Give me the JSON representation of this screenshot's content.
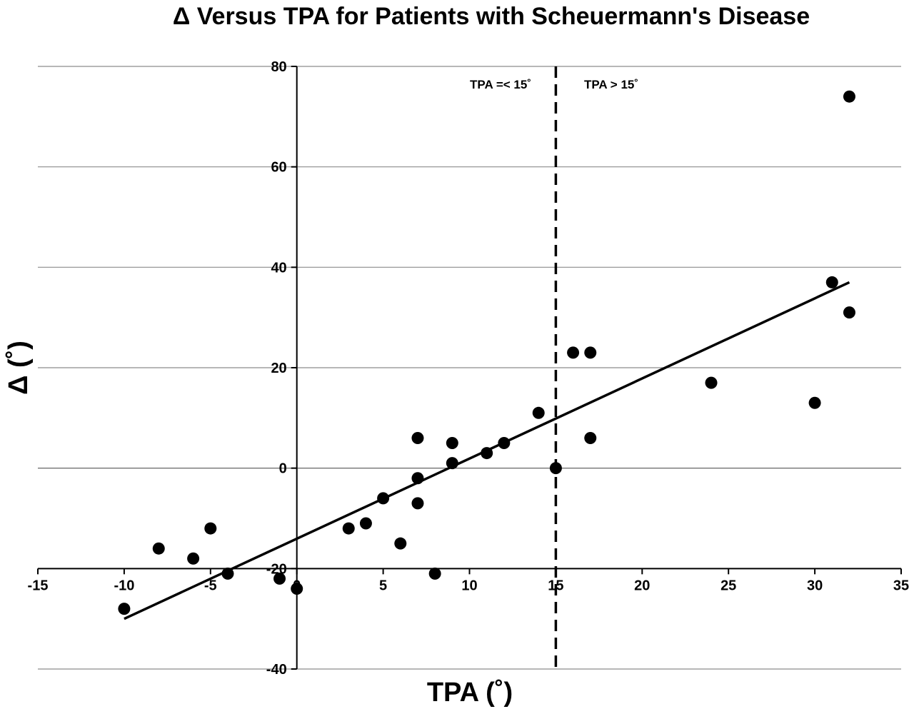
{
  "chart_data": {
    "type": "scatter",
    "title": "Δ Versus TPA for Patients with Scheuermann's Disease",
    "xlabel": "TPA (˚)",
    "ylabel": "Δ (˚)",
    "xlim": [
      -15,
      35
    ],
    "ylim": [
      -40,
      80
    ],
    "x_ticks": [
      -15,
      -10,
      -5,
      0,
      5,
      10,
      15,
      20,
      25,
      30,
      35
    ],
    "y_ticks": [
      -40,
      -20,
      0,
      20,
      40,
      60,
      80
    ],
    "x_tick_labels": [
      "-15",
      "-10",
      "-5",
      "0",
      "5",
      "10",
      "15",
      "20",
      "25",
      "30",
      "35"
    ],
    "y_tick_labels": [
      "-40",
      "-20",
      "0",
      "20",
      "40",
      "60",
      "80"
    ],
    "grid": "horizontal",
    "points": [
      {
        "x": -10,
        "y": -28
      },
      {
        "x": -8,
        "y": -16
      },
      {
        "x": -6,
        "y": -18
      },
      {
        "x": -5,
        "y": -12
      },
      {
        "x": -4,
        "y": -21
      },
      {
        "x": -1,
        "y": -22
      },
      {
        "x": 0,
        "y": -24
      },
      {
        "x": 3,
        "y": -12
      },
      {
        "x": 4,
        "y": -11
      },
      {
        "x": 5,
        "y": -6
      },
      {
        "x": 6,
        "y": -15
      },
      {
        "x": 7,
        "y": 6
      },
      {
        "x": 7,
        "y": -2
      },
      {
        "x": 7,
        "y": -7
      },
      {
        "x": 8,
        "y": -21
      },
      {
        "x": 9,
        "y": 5
      },
      {
        "x": 9,
        "y": 1
      },
      {
        "x": 11,
        "y": 3
      },
      {
        "x": 12,
        "y": 5
      },
      {
        "x": 14,
        "y": 11
      },
      {
        "x": 15,
        "y": 0
      },
      {
        "x": 16,
        "y": 23
      },
      {
        "x": 17,
        "y": 23
      },
      {
        "x": 17,
        "y": 6
      },
      {
        "x": 24,
        "y": 17
      },
      {
        "x": 30,
        "y": 13
      },
      {
        "x": 31,
        "y": 37
      },
      {
        "x": 32,
        "y": 31
      },
      {
        "x": 32,
        "y": 74
      }
    ],
    "trendline": {
      "x1": -10,
      "y1": -30,
      "x2": 32,
      "y2": 37
    },
    "threshold": {
      "x": 15
    },
    "annotations": {
      "left": "TPA =< 15˚",
      "right": "TPA > 15˚"
    },
    "marker_color": "#000000",
    "line_color": "#000000",
    "grid_color": "#8c8c8c"
  }
}
